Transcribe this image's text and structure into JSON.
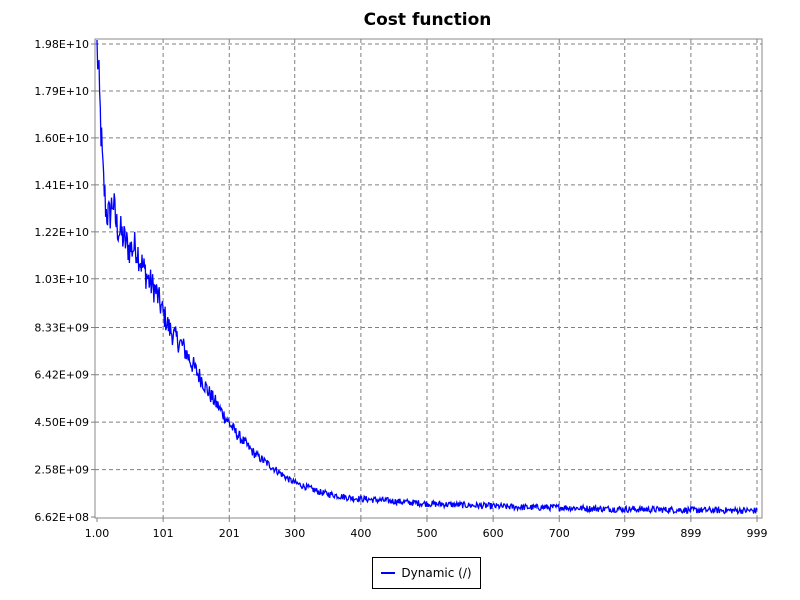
{
  "chart_data": {
    "type": "line",
    "title": "Cost function",
    "xlabel": "",
    "ylabel": "",
    "xlim": [
      0,
      1000
    ],
    "ylim": [
      662000000,
      19800000000
    ],
    "x_tick_labels": [
      "1.00",
      "101",
      "201",
      "300",
      "400",
      "500",
      "600",
      "700",
      "799",
      "899",
      "999"
    ],
    "x_tick_values": [
      1,
      101,
      201,
      300,
      400,
      500,
      600,
      700,
      799,
      899,
      999
    ],
    "y_tick_labels": [
      "6.62E+08",
      "2.58E+09",
      "4.50E+09",
      "6.42E+09",
      "8.33E+09",
      "1.03E+10",
      "1.22E+10",
      "1.41E+10",
      "1.60E+10",
      "1.79E+10",
      "1.98E+10"
    ],
    "y_tick_values": [
      662000000,
      2580000000,
      4500000000,
      6420000000,
      8330000000,
      10300000000,
      12200000000,
      14100000000,
      16000000000,
      17900000000,
      19800000000
    ],
    "grid": true,
    "legend_position": "bottom-center",
    "series": [
      {
        "name": "Dynamic (/)",
        "color": "#0000ff",
        "x": [
          1,
          5,
          10,
          15,
          20,
          25,
          30,
          40,
          50,
          60,
          70,
          80,
          90,
          100,
          110,
          120,
          130,
          140,
          150,
          160,
          170,
          180,
          190,
          200,
          210,
          220,
          230,
          240,
          250,
          260,
          270,
          280,
          290,
          300,
          320,
          340,
          360,
          380,
          400,
          450,
          500,
          550,
          600,
          650,
          700,
          750,
          800,
          850,
          900,
          950,
          999
        ],
        "values": [
          19800000000,
          17500000000,
          14500000000,
          13000000000,
          12800000000,
          13500000000,
          12500000000,
          12000000000,
          11500000000,
          11600000000,
          10800000000,
          10200000000,
          9800000000,
          9000000000,
          8300000000,
          7900000000,
          7600000000,
          7100000000,
          6600000000,
          6200000000,
          5700000000,
          5300000000,
          4900000000,
          4500000000,
          4100000000,
          3800000000,
          3500000000,
          3200000000,
          3000000000,
          2800000000,
          2600000000,
          2400000000,
          2200000000,
          2050000000,
          1850000000,
          1650000000,
          1550000000,
          1450000000,
          1400000000,
          1300000000,
          1200000000,
          1150000000,
          1100000000,
          1050000000,
          1050000000,
          1000000000,
          980000000,
          960000000,
          940000000,
          930000000,
          920000000
        ]
      }
    ]
  }
}
